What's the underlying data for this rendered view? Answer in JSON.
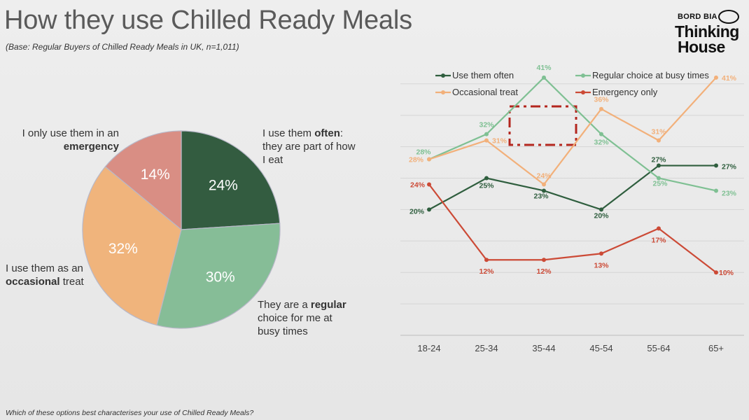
{
  "header": {
    "title": "How they use Chilled Ready Meals",
    "subtitle": "(Base: Regular Buyers of Chilled Ready Meals in UK, n=1,011)"
  },
  "logo": {
    "brand": "BORD BIA",
    "line1": "Thinking",
    "line2": "House"
  },
  "footnote": "Which of these options best characterises your use of Chilled Ready Meals?",
  "pie_labels": {
    "often": {
      "pre": "I use them ",
      "bold": "often",
      "post": ": they are part of how I eat"
    },
    "regular": {
      "pre": "They are a ",
      "bold": "regular",
      "post": " choice for me at busy times"
    },
    "occasional": {
      "pre": "I use them as an ",
      "bold": "occasional",
      "post": " treat"
    },
    "emergency": {
      "pre": "I only use them in an ",
      "bold": "emergency",
      "post": ""
    }
  },
  "chart_data": [
    {
      "type": "pie",
      "slices": [
        {
          "name": "Use them often",
          "value": 24,
          "label": "24%",
          "color": "#335c40"
        },
        {
          "name": "Regular choice at busy times",
          "value": 30,
          "label": "30%",
          "color": "#86bd97"
        },
        {
          "name": "Occasional treat",
          "value": 32,
          "label": "32%",
          "color": "#f0b47c"
        },
        {
          "name": "Emergency only",
          "value": 14,
          "label": "14%",
          "color": "#d98e84"
        }
      ]
    },
    {
      "type": "line",
      "categories": [
        "18-24",
        "25-34",
        "35-44",
        "45-54",
        "55-64",
        "65+"
      ],
      "ylim": [
        0,
        50
      ],
      "grid": true,
      "legend_position": "top",
      "series": [
        {
          "name": "Use them often",
          "color": "#2f5e3e",
          "values": [
            20,
            25,
            23,
            20,
            27,
            27
          ]
        },
        {
          "name": "Regular choice at busy times",
          "color": "#7fc093",
          "values": [
            28,
            32,
            41,
            32,
            25,
            23
          ]
        },
        {
          "name": "Occasional treat",
          "color": "#f2b07a",
          "values": [
            28,
            31,
            24,
            36,
            31,
            41
          ]
        },
        {
          "name": "Emergency only",
          "color": "#cc4a36",
          "values": [
            24,
            12,
            12,
            13,
            17,
            10
          ]
        }
      ]
    }
  ]
}
